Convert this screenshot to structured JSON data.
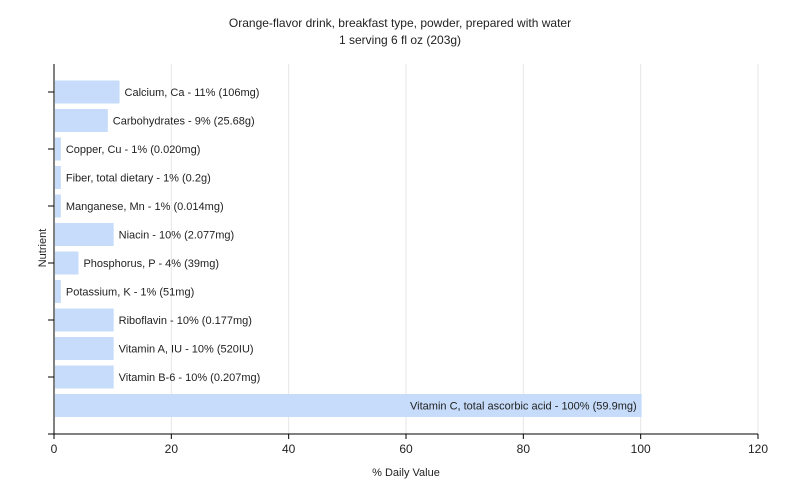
{
  "chart_data": {
    "type": "bar",
    "orientation": "horizontal",
    "title": "Orange-flavor drink, breakfast type, powder, prepared with water",
    "subtitle": "1 serving 6 fl oz (203g)",
    "xlabel": "% Daily Value",
    "ylabel": "Nutrient",
    "xlim": [
      0,
      120
    ],
    "xticks": [
      0,
      20,
      40,
      60,
      80,
      100,
      120
    ],
    "grid": "vertical",
    "bar_color": "#c6dcfa",
    "categories": [
      "Calcium, Ca",
      "Carbohydrates",
      "Copper, Cu",
      "Fiber, total dietary",
      "Manganese, Mn",
      "Niacin",
      "Phosphorus, P",
      "Potassium, K",
      "Riboflavin",
      "Vitamin A, IU",
      "Vitamin B-6",
      "Vitamin C, total ascorbic acid"
    ],
    "values": [
      11,
      9,
      1,
      1,
      1,
      10,
      4,
      1,
      10,
      10,
      10,
      100
    ],
    "labels": [
      "Calcium, Ca - 11% (106mg)",
      "Carbohydrates - 9% (25.68g)",
      "Copper, Cu - 1% (0.020mg)",
      "Fiber, total dietary - 1% (0.2g)",
      "Manganese, Mn - 1% (0.014mg)",
      "Niacin - 10% (2.077mg)",
      "Phosphorus, P - 4% (39mg)",
      "Potassium, K - 1% (51mg)",
      "Riboflavin - 10% (0.177mg)",
      "Vitamin A, IU - 10% (520IU)",
      "Vitamin B-6 - 10% (0.207mg)",
      "Vitamin C, total ascorbic acid - 100% (59.9mg)"
    ]
  }
}
